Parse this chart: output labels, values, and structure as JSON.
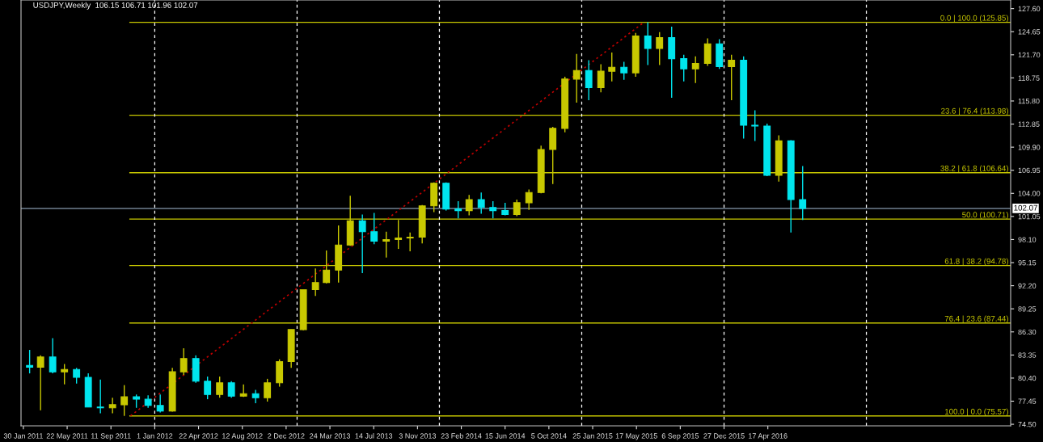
{
  "chart_data": {
    "type": "candlestick",
    "title": "USDJPY,Weekly  106.15 106.71 101.96 102.07",
    "x": [
      "2011-02-15",
      "2011-03-15",
      "2011-04-15",
      "2011-05-15",
      "2011-06-15",
      "2011-07-15",
      "2011-08-15",
      "2011-09-15",
      "2011-10-15",
      "2011-11-15",
      "2011-12-15",
      "2012-01-15",
      "2012-02-15",
      "2012-03-15",
      "2012-04-15",
      "2012-05-15",
      "2012-06-15",
      "2012-07-15",
      "2012-08-15",
      "2012-09-15",
      "2012-10-15",
      "2012-11-15",
      "2012-12-15",
      "2013-01-15",
      "2013-02-15",
      "2013-03-15",
      "2013-04-15",
      "2013-05-15",
      "2013-06-15",
      "2013-07-15",
      "2013-08-15",
      "2013-09-15",
      "2013-10-15",
      "2013-11-15",
      "2013-12-15",
      "2014-01-15",
      "2014-02-15",
      "2014-03-15",
      "2014-04-15",
      "2014-05-15",
      "2014-06-15",
      "2014-07-15",
      "2014-08-15",
      "2014-09-15",
      "2014-10-15",
      "2014-11-15",
      "2014-12-15",
      "2015-01-15",
      "2015-02-15",
      "2015-03-15",
      "2015-04-15",
      "2015-05-15",
      "2015-06-15",
      "2015-07-15",
      "2015-08-15",
      "2015-09-15",
      "2015-10-15",
      "2015-11-15",
      "2015-12-15",
      "2016-01-15",
      "2016-02-15",
      "2016-03-15",
      "2016-04-15",
      "2016-05-15",
      "2016-06-15",
      "2016-07-15"
    ],
    "ohlc": [
      [
        82.0,
        84.0,
        81.0,
        81.8
      ],
      [
        81.8,
        83.3,
        76.3,
        83.1
      ],
      [
        83.1,
        85.5,
        81.0,
        81.2
      ],
      [
        81.2,
        82.2,
        79.6,
        81.5
      ],
      [
        81.5,
        81.7,
        79.7,
        80.5
      ],
      [
        80.5,
        81.0,
        76.7,
        76.7
      ],
      [
        76.7,
        80.2,
        75.9,
        76.6
      ],
      [
        76.6,
        77.9,
        75.9,
        77.0
      ],
      [
        77.0,
        79.5,
        75.57,
        78.0
      ],
      [
        78.0,
        78.3,
        76.6,
        77.7
      ],
      [
        77.7,
        78.2,
        76.6,
        76.9
      ],
      [
        76.9,
        78.3,
        76.0,
        76.2
      ],
      [
        76.2,
        81.7,
        76.1,
        81.2
      ],
      [
        81.2,
        84.2,
        80.8,
        82.9
      ],
      [
        82.9,
        83.3,
        79.8,
        80.0
      ],
      [
        80.0,
        80.6,
        77.7,
        78.3
      ],
      [
        78.3,
        80.6,
        77.9,
        79.8
      ],
      [
        79.8,
        80.0,
        77.9,
        78.1
      ],
      [
        78.1,
        79.6,
        78.0,
        78.4
      ],
      [
        78.4,
        78.9,
        77.2,
        77.9
      ],
      [
        77.9,
        80.3,
        77.4,
        79.8
      ],
      [
        79.8,
        82.8,
        79.3,
        82.5
      ],
      [
        82.5,
        86.6,
        81.7,
        86.6
      ],
      [
        86.6,
        91.7,
        86.5,
        91.7
      ],
      [
        91.7,
        94.4,
        90.9,
        92.6
      ],
      [
        92.6,
        96.7,
        92.5,
        94.2
      ],
      [
        94.2,
        99.9,
        92.6,
        97.4
      ],
      [
        97.4,
        103.7,
        97.3,
        100.5
      ],
      [
        100.5,
        101.3,
        93.8,
        99.1
      ],
      [
        99.1,
        101.5,
        97.5,
        97.9
      ],
      [
        97.9,
        99.1,
        95.8,
        98.1
      ],
      [
        98.1,
        100.6,
        96.9,
        98.3
      ],
      [
        98.3,
        99.0,
        96.6,
        98.4
      ],
      [
        98.4,
        102.5,
        97.6,
        102.4
      ],
      [
        102.4,
        105.4,
        101.6,
        105.3
      ],
      [
        105.3,
        105.4,
        101.8,
        102.0
      ],
      [
        102.0,
        103.0,
        100.8,
        101.8
      ],
      [
        101.8,
        103.8,
        101.2,
        103.2
      ],
      [
        103.2,
        104.1,
        101.4,
        102.2
      ],
      [
        102.2,
        103.0,
        100.8,
        101.8
      ],
      [
        101.8,
        102.8,
        101.2,
        101.3
      ],
      [
        101.3,
        103.2,
        101.1,
        102.8
      ],
      [
        102.8,
        104.5,
        101.9,
        104.1
      ],
      [
        104.1,
        110.1,
        104.0,
        109.6
      ],
      [
        109.6,
        112.5,
        105.2,
        112.3
      ],
      [
        112.3,
        118.9,
        111.8,
        118.6
      ],
      [
        118.6,
        121.8,
        115.6,
        119.7
      ],
      [
        119.7,
        121.0,
        115.9,
        117.5
      ],
      [
        117.5,
        120.5,
        116.9,
        119.6
      ],
      [
        119.6,
        122.0,
        118.3,
        120.1
      ],
      [
        120.1,
        120.8,
        118.5,
        119.4
      ],
      [
        119.4,
        124.5,
        118.9,
        124.1
      ],
      [
        124.1,
        125.85,
        120.4,
        122.5
      ],
      [
        122.5,
        124.6,
        120.4,
        123.9
      ],
      [
        123.9,
        125.3,
        116.2,
        121.2
      ],
      [
        121.2,
        121.7,
        118.3,
        119.9
      ],
      [
        119.9,
        121.5,
        118.1,
        120.6
      ],
      [
        120.6,
        123.8,
        120.3,
        123.1
      ],
      [
        123.1,
        123.7,
        119.9,
        120.2
      ],
      [
        120.2,
        121.7,
        115.9,
        121.0
      ],
      [
        121.0,
        121.5,
        111.0,
        112.7
      ],
      [
        112.7,
        114.6,
        110.7,
        112.6
      ],
      [
        112.6,
        112.9,
        106.2,
        106.3
      ],
      [
        106.3,
        111.4,
        105.5,
        110.7
      ],
      [
        110.7,
        110.8,
        99.0,
        103.2
      ],
      [
        103.2,
        107.5,
        100.6,
        102.07
      ]
    ],
    "colors": [
      "#00e5ee",
      "#c8c800",
      "#00e5ee",
      "#c8c800",
      "#00e5ee",
      "#00e5ee",
      "#00e5ee",
      "#c8c800",
      "#c8c800",
      "#00e5ee",
      "#00e5ee",
      "#00e5ee",
      "#c8c800",
      "#c8c800",
      "#00e5ee",
      "#00e5ee",
      "#c8c800",
      "#00e5ee",
      "#c8c800",
      "#00e5ee",
      "#c8c800",
      "#c8c800",
      "#c8c800",
      "#c8c800",
      "#c8c800",
      "#c8c800",
      "#c8c800",
      "#c8c800",
      "#00e5ee",
      "#00e5ee",
      "#c8c800",
      "#c8c800",
      "#c8c800",
      "#c8c800",
      "#c8c800",
      "#00e5ee",
      "#00e5ee",
      "#c8c800",
      "#00e5ee",
      "#00e5ee",
      "#00e5ee",
      "#c8c800",
      "#c8c800",
      "#c8c800",
      "#c8c800",
      "#c8c800",
      "#c8c800",
      "#00e5ee",
      "#c8c800",
      "#c8c800",
      "#00e5ee",
      "#c8c800",
      "#00e5ee",
      "#c8c800",
      "#00e5ee",
      "#00e5ee",
      "#c8c800",
      "#c8c800",
      "#00e5ee",
      "#c8c800",
      "#00e5ee",
      "#00e5ee",
      "#00e5ee",
      "#c8c800",
      "#00e5ee",
      "#00e5ee"
    ],
    "series": [
      {
        "type": "line",
        "color": "#c00000",
        "line_style": "dotted",
        "x": [
          "2011-10-31",
          "2015-06-05"
        ],
        "values": [
          75.57,
          125.85
        ]
      }
    ],
    "xlim": [
      "2011-01-24",
      "2017-12-29"
    ],
    "xticks": [
      {
        "value": "2011-01-30",
        "label": "30 Jan 2011"
      },
      {
        "value": "2011-05-22",
        "label": "22 May 2011"
      },
      {
        "value": "2011-09-11",
        "label": "11 Sep 2011"
      },
      {
        "value": "2012-01-01",
        "label": "1 Jan 2012"
      },
      {
        "value": "2012-04-22",
        "label": "22 Apr 2012"
      },
      {
        "value": "2012-08-12",
        "label": "12 Aug 2012"
      },
      {
        "value": "2012-12-02",
        "label": "2 Dec 2012"
      },
      {
        "value": "2013-03-24",
        "label": "24 Mar 2013"
      },
      {
        "value": "2013-07-14",
        "label": "14 Jul 2013"
      },
      {
        "value": "2013-11-03",
        "label": "3 Nov 2013"
      },
      {
        "value": "2014-02-23",
        "label": "23 Feb 2014"
      },
      {
        "value": "2014-06-15",
        "label": "15 Jun 2014"
      },
      {
        "value": "2014-10-05",
        "label": "5 Oct 2014"
      },
      {
        "value": "2015-01-25",
        "label": "25 Jan 2015"
      },
      {
        "value": "2015-05-17",
        "label": "17 May 2015"
      },
      {
        "value": "2015-09-06",
        "label": "6 Sep 2015"
      },
      {
        "value": "2015-12-27",
        "label": "27 Dec 2015"
      },
      {
        "value": "2016-04-17",
        "label": "17 Apr 2016"
      }
    ],
    "ylim": [
      74.3,
      128.7
    ],
    "yticks": [
      {
        "value": 74.5,
        "label": "74.50"
      },
      {
        "value": 77.45,
        "label": "77.45"
      },
      {
        "value": 80.4,
        "label": "80.40"
      },
      {
        "value": 83.35,
        "label": "83.35"
      },
      {
        "value": 86.3,
        "label": "86.30"
      },
      {
        "value": 89.25,
        "label": "89.25"
      },
      {
        "value": 92.2,
        "label": "92.20"
      },
      {
        "value": 95.15,
        "label": "95.15"
      },
      {
        "value": 98.1,
        "label": "98.10"
      },
      {
        "value": 101.05,
        "label": "101.05"
      },
      {
        "value": 104.0,
        "label": "104.00"
      },
      {
        "value": 106.95,
        "label": "106.95"
      },
      {
        "value": 109.9,
        "label": "109.90"
      },
      {
        "value": 112.85,
        "label": "112.85"
      },
      {
        "value": 115.8,
        "label": "115.80"
      },
      {
        "value": 118.75,
        "label": "118.75"
      },
      {
        "value": 121.7,
        "label": "121.70"
      },
      {
        "value": 124.65,
        "label": "124.65"
      },
      {
        "value": 127.6,
        "label": "127.60"
      }
    ],
    "ref_lines": [
      {
        "axis": "y",
        "value": 125.85,
        "label": "0.0 | 100.0 (125.85)",
        "color": "#c8c800"
      },
      {
        "axis": "y",
        "value": 113.98,
        "label": "23.6 | 76.4 (113.98)",
        "color": "#c8c800"
      },
      {
        "axis": "y",
        "value": 106.64,
        "label": "38.2 | 61.8 (106.64)",
        "color": "#c8c800"
      },
      {
        "axis": "y",
        "value": 100.71,
        "label": "50.0 (100.71)",
        "color": "#c8c800"
      },
      {
        "axis": "y",
        "value": 94.78,
        "label": "61.8 | 38.2 (94.78)",
        "color": "#c8c800"
      },
      {
        "axis": "y",
        "value": 87.44,
        "label": "76.4 | 23.6 (87.44)",
        "color": "#c8c800"
      },
      {
        "axis": "y",
        "value": 75.57,
        "label": "100.0 | 0.0 (75.57)",
        "color": "#c8c800"
      },
      {
        "axis": "y",
        "value": 102.07,
        "label": "102.07",
        "color": "#708090",
        "line_style": "solid"
      },
      {
        "axis": "x",
        "value": "2012-01-01",
        "color": "#ffffff",
        "line_style": "dashed"
      },
      {
        "axis": "x",
        "value": "2012-12-30",
        "color": "#ffffff",
        "line_style": "dashed"
      },
      {
        "axis": "x",
        "value": "2013-12-29",
        "color": "#ffffff",
        "line_style": "dashed"
      },
      {
        "axis": "x",
        "value": "2014-12-28",
        "color": "#ffffff",
        "line_style": "dashed"
      },
      {
        "axis": "x",
        "value": "2015-12-27",
        "color": "#ffffff",
        "line_style": "dashed"
      },
      {
        "axis": "x",
        "value": "2016-12-25",
        "color": "#ffffff",
        "line_style": "dashed"
      }
    ],
    "grid": false
  }
}
